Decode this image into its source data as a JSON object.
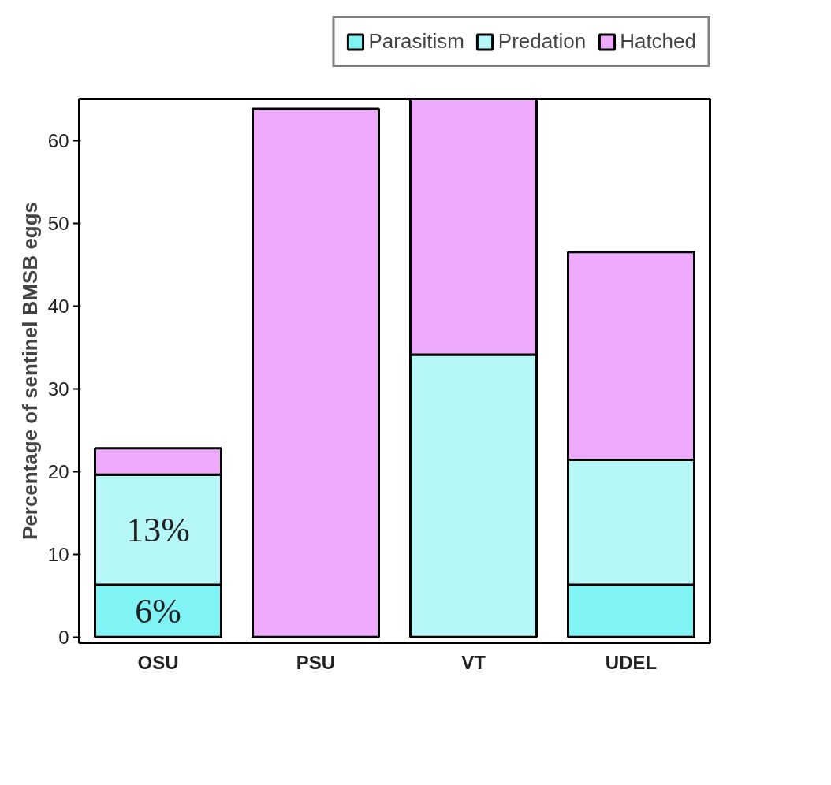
{
  "chart_data": {
    "type": "bar",
    "stacked": true,
    "ylabel": "Percentage of sentinel BMSB eggs",
    "categories": [
      "OSU",
      "PSU",
      "VT",
      "UDEL"
    ],
    "series": [
      {
        "name": "Parasitism",
        "color": "#80f4f4",
        "values": [
          6.3,
          null,
          null,
          6.3
        ],
        "value_labels": [
          "6%",
          null,
          null,
          null
        ]
      },
      {
        "name": "Predation",
        "color": "#b6f8f8",
        "values": [
          13.3,
          null,
          34.1,
          15.1
        ],
        "value_labels": [
          "13%",
          null,
          null,
          null
        ]
      },
      {
        "name": "Hatched",
        "color": "#eeaafc",
        "values": [
          3.2,
          63.8,
          30.9,
          25.1
        ]
      }
    ],
    "ylim": [
      -0.7,
      65
    ],
    "yticks": [
      0,
      10,
      20,
      30,
      40,
      50,
      60
    ],
    "grid": false,
    "legend": "top right"
  }
}
